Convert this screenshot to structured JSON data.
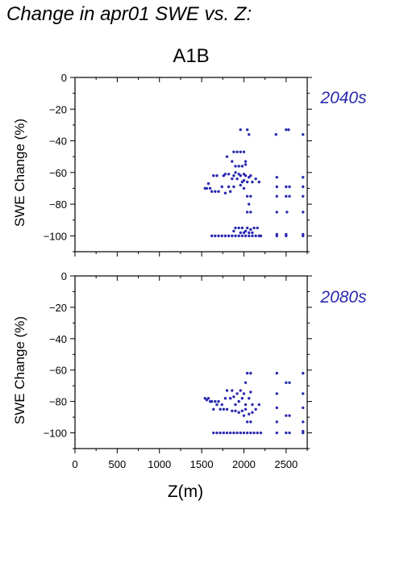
{
  "title": "Change in apr01 SWE vs. Z:",
  "scenario": "A1B",
  "accent_color": "#2a2ab0",
  "chart_data": [
    {
      "type": "scatter",
      "panel_label": "2040s",
      "xlabel": "Z(m)",
      "ylabel": "SWE Change (%)",
      "xlim": [
        0,
        2750
      ],
      "ylim": [
        -110,
        0
      ],
      "x_ticks": [],
      "y_ticks": [
        0,
        -20,
        -40,
        -60,
        -80,
        -100
      ],
      "points": [
        [
          1540,
          -70
        ],
        [
          1560,
          -70
        ],
        [
          1580,
          -67
        ],
        [
          1600,
          -70
        ],
        [
          1620,
          -72
        ],
        [
          1640,
          -62
        ],
        [
          1660,
          -72
        ],
        [
          1680,
          -62
        ],
        [
          1700,
          -72
        ],
        [
          1620,
          -100
        ],
        [
          1660,
          -100
        ],
        [
          1700,
          -100
        ],
        [
          1740,
          -100
        ],
        [
          1780,
          -100
        ],
        [
          1820,
          -100
        ],
        [
          1860,
          -100
        ],
        [
          1900,
          -100
        ],
        [
          1940,
          -100
        ],
        [
          1980,
          -100
        ],
        [
          2020,
          -100
        ],
        [
          2060,
          -100
        ],
        [
          2100,
          -100
        ],
        [
          2140,
          -100
        ],
        [
          2180,
          -100
        ],
        [
          2200,
          -100
        ],
        [
          1740,
          -69
        ],
        [
          1760,
          -62
        ],
        [
          1780,
          -61
        ],
        [
          1780,
          -73
        ],
        [
          1820,
          -61
        ],
        [
          1820,
          -69
        ],
        [
          1840,
          -72
        ],
        [
          1860,
          -64
        ],
        [
          1880,
          -62
        ],
        [
          1880,
          -69
        ],
        [
          1900,
          -60
        ],
        [
          1920,
          -64
        ],
        [
          1940,
          -61
        ],
        [
          1960,
          -62
        ],
        [
          1960,
          -68
        ],
        [
          1980,
          -66
        ],
        [
          2000,
          -61
        ],
        [
          2000,
          -65
        ],
        [
          2020,
          -62
        ],
        [
          2040,
          -66
        ],
        [
          2060,
          -63
        ],
        [
          2080,
          -62
        ],
        [
          2100,
          -66
        ],
        [
          2140,
          -64
        ],
        [
          2180,
          -66
        ],
        [
          1800,
          -50
        ],
        [
          1860,
          -53
        ],
        [
          1880,
          -47
        ],
        [
          1920,
          -47
        ],
        [
          1960,
          -47
        ],
        [
          2000,
          -47
        ],
        [
          2020,
          -53
        ],
        [
          1960,
          -33
        ],
        [
          2040,
          -33
        ],
        [
          2060,
          -36
        ],
        [
          1900,
          -56
        ],
        [
          1940,
          -56
        ],
        [
          1980,
          -56
        ],
        [
          2020,
          -55
        ],
        [
          1940,
          -95
        ],
        [
          1980,
          -95
        ],
        [
          2020,
          -97
        ],
        [
          2040,
          -95
        ],
        [
          2080,
          -96
        ],
        [
          2120,
          -95
        ],
        [
          2160,
          -95
        ],
        [
          1880,
          -97
        ],
        [
          1900,
          -95
        ],
        [
          1960,
          -98
        ],
        [
          2000,
          -98
        ],
        [
          2060,
          -98
        ],
        [
          2100,
          -98
        ],
        [
          2040,
          -75
        ],
        [
          2060,
          -80
        ],
        [
          2080,
          -75
        ],
        [
          2080,
          -85
        ],
        [
          2040,
          -85
        ],
        [
          2000,
          -70
        ],
        [
          2380,
          -36
        ],
        [
          2390,
          -63
        ],
        [
          2390,
          -69
        ],
        [
          2390,
          -75
        ],
        [
          2390,
          -85
        ],
        [
          2390,
          -99
        ],
        [
          2390,
          -100
        ],
        [
          2500,
          -33
        ],
        [
          2530,
          -33
        ],
        [
          2500,
          -69
        ],
        [
          2540,
          -69
        ],
        [
          2500,
          -75
        ],
        [
          2540,
          -75
        ],
        [
          2510,
          -85
        ],
        [
          2500,
          -99
        ],
        [
          2500,
          -100
        ],
        [
          2700,
          -36
        ],
        [
          2700,
          -63
        ],
        [
          2700,
          -69
        ],
        [
          2700,
          -75
        ],
        [
          2700,
          -85
        ],
        [
          2700,
          -99
        ],
        [
          2700,
          -100
        ]
      ]
    },
    {
      "type": "scatter",
      "panel_label": "2080s",
      "xlabel": "Z(m)",
      "ylabel": "SWE Change (%)",
      "xlim": [
        0,
        2750
      ],
      "ylim": [
        -110,
        0
      ],
      "x_ticks": [
        0,
        500,
        1000,
        1500,
        2000,
        2500
      ],
      "y_ticks": [
        0,
        -20,
        -40,
        -60,
        -80,
        -100
      ],
      "points": [
        [
          1540,
          -78
        ],
        [
          1560,
          -79
        ],
        [
          1580,
          -78
        ],
        [
          1600,
          -80
        ],
        [
          1620,
          -80
        ],
        [
          1640,
          -85
        ],
        [
          1660,
          -80
        ],
        [
          1680,
          -82
        ],
        [
          1700,
          -80
        ],
        [
          1720,
          -85
        ],
        [
          1740,
          -82
        ],
        [
          1760,
          -85
        ],
        [
          1780,
          -78
        ],
        [
          1800,
          -85
        ],
        [
          1800,
          -73
        ],
        [
          1840,
          -78
        ],
        [
          1860,
          -73
        ],
        [
          1880,
          -77
        ],
        [
          1900,
          -82
        ],
        [
          1920,
          -75
        ],
        [
          1940,
          -80
        ],
        [
          1960,
          -73
        ],
        [
          1980,
          -78
        ],
        [
          2000,
          -75
        ],
        [
          2020,
          -82
        ],
        [
          2060,
          -78
        ],
        [
          2080,
          -74
        ],
        [
          2100,
          -82
        ],
        [
          2140,
          -85
        ],
        [
          2180,
          -82
        ],
        [
          1860,
          -86
        ],
        [
          1900,
          -86
        ],
        [
          1940,
          -87
        ],
        [
          1980,
          -86
        ],
        [
          2000,
          -89
        ],
        [
          2020,
          -85
        ],
        [
          2060,
          -88
        ],
        [
          2100,
          -87
        ],
        [
          2040,
          -62
        ],
        [
          2080,
          -62
        ],
        [
          2020,
          -68
        ],
        [
          2040,
          -93
        ],
        [
          2080,
          -93
        ],
        [
          1640,
          -100
        ],
        [
          1680,
          -100
        ],
        [
          1720,
          -100
        ],
        [
          1760,
          -100
        ],
        [
          1800,
          -100
        ],
        [
          1840,
          -100
        ],
        [
          1880,
          -100
        ],
        [
          1920,
          -100
        ],
        [
          1960,
          -100
        ],
        [
          2000,
          -100
        ],
        [
          2040,
          -100
        ],
        [
          2080,
          -100
        ],
        [
          2120,
          -100
        ],
        [
          2160,
          -100
        ],
        [
          2200,
          -100
        ],
        [
          2390,
          -62
        ],
        [
          2390,
          -75
        ],
        [
          2390,
          -84
        ],
        [
          2390,
          -93
        ],
        [
          2390,
          -100
        ],
        [
          2500,
          -68
        ],
        [
          2540,
          -68
        ],
        [
          2500,
          -89
        ],
        [
          2540,
          -89
        ],
        [
          2500,
          -100
        ],
        [
          2540,
          -100
        ],
        [
          2700,
          -62
        ],
        [
          2700,
          -75
        ],
        [
          2700,
          -84
        ],
        [
          2700,
          -93
        ],
        [
          2700,
          -99
        ],
        [
          2700,
          -100
        ]
      ]
    }
  ]
}
